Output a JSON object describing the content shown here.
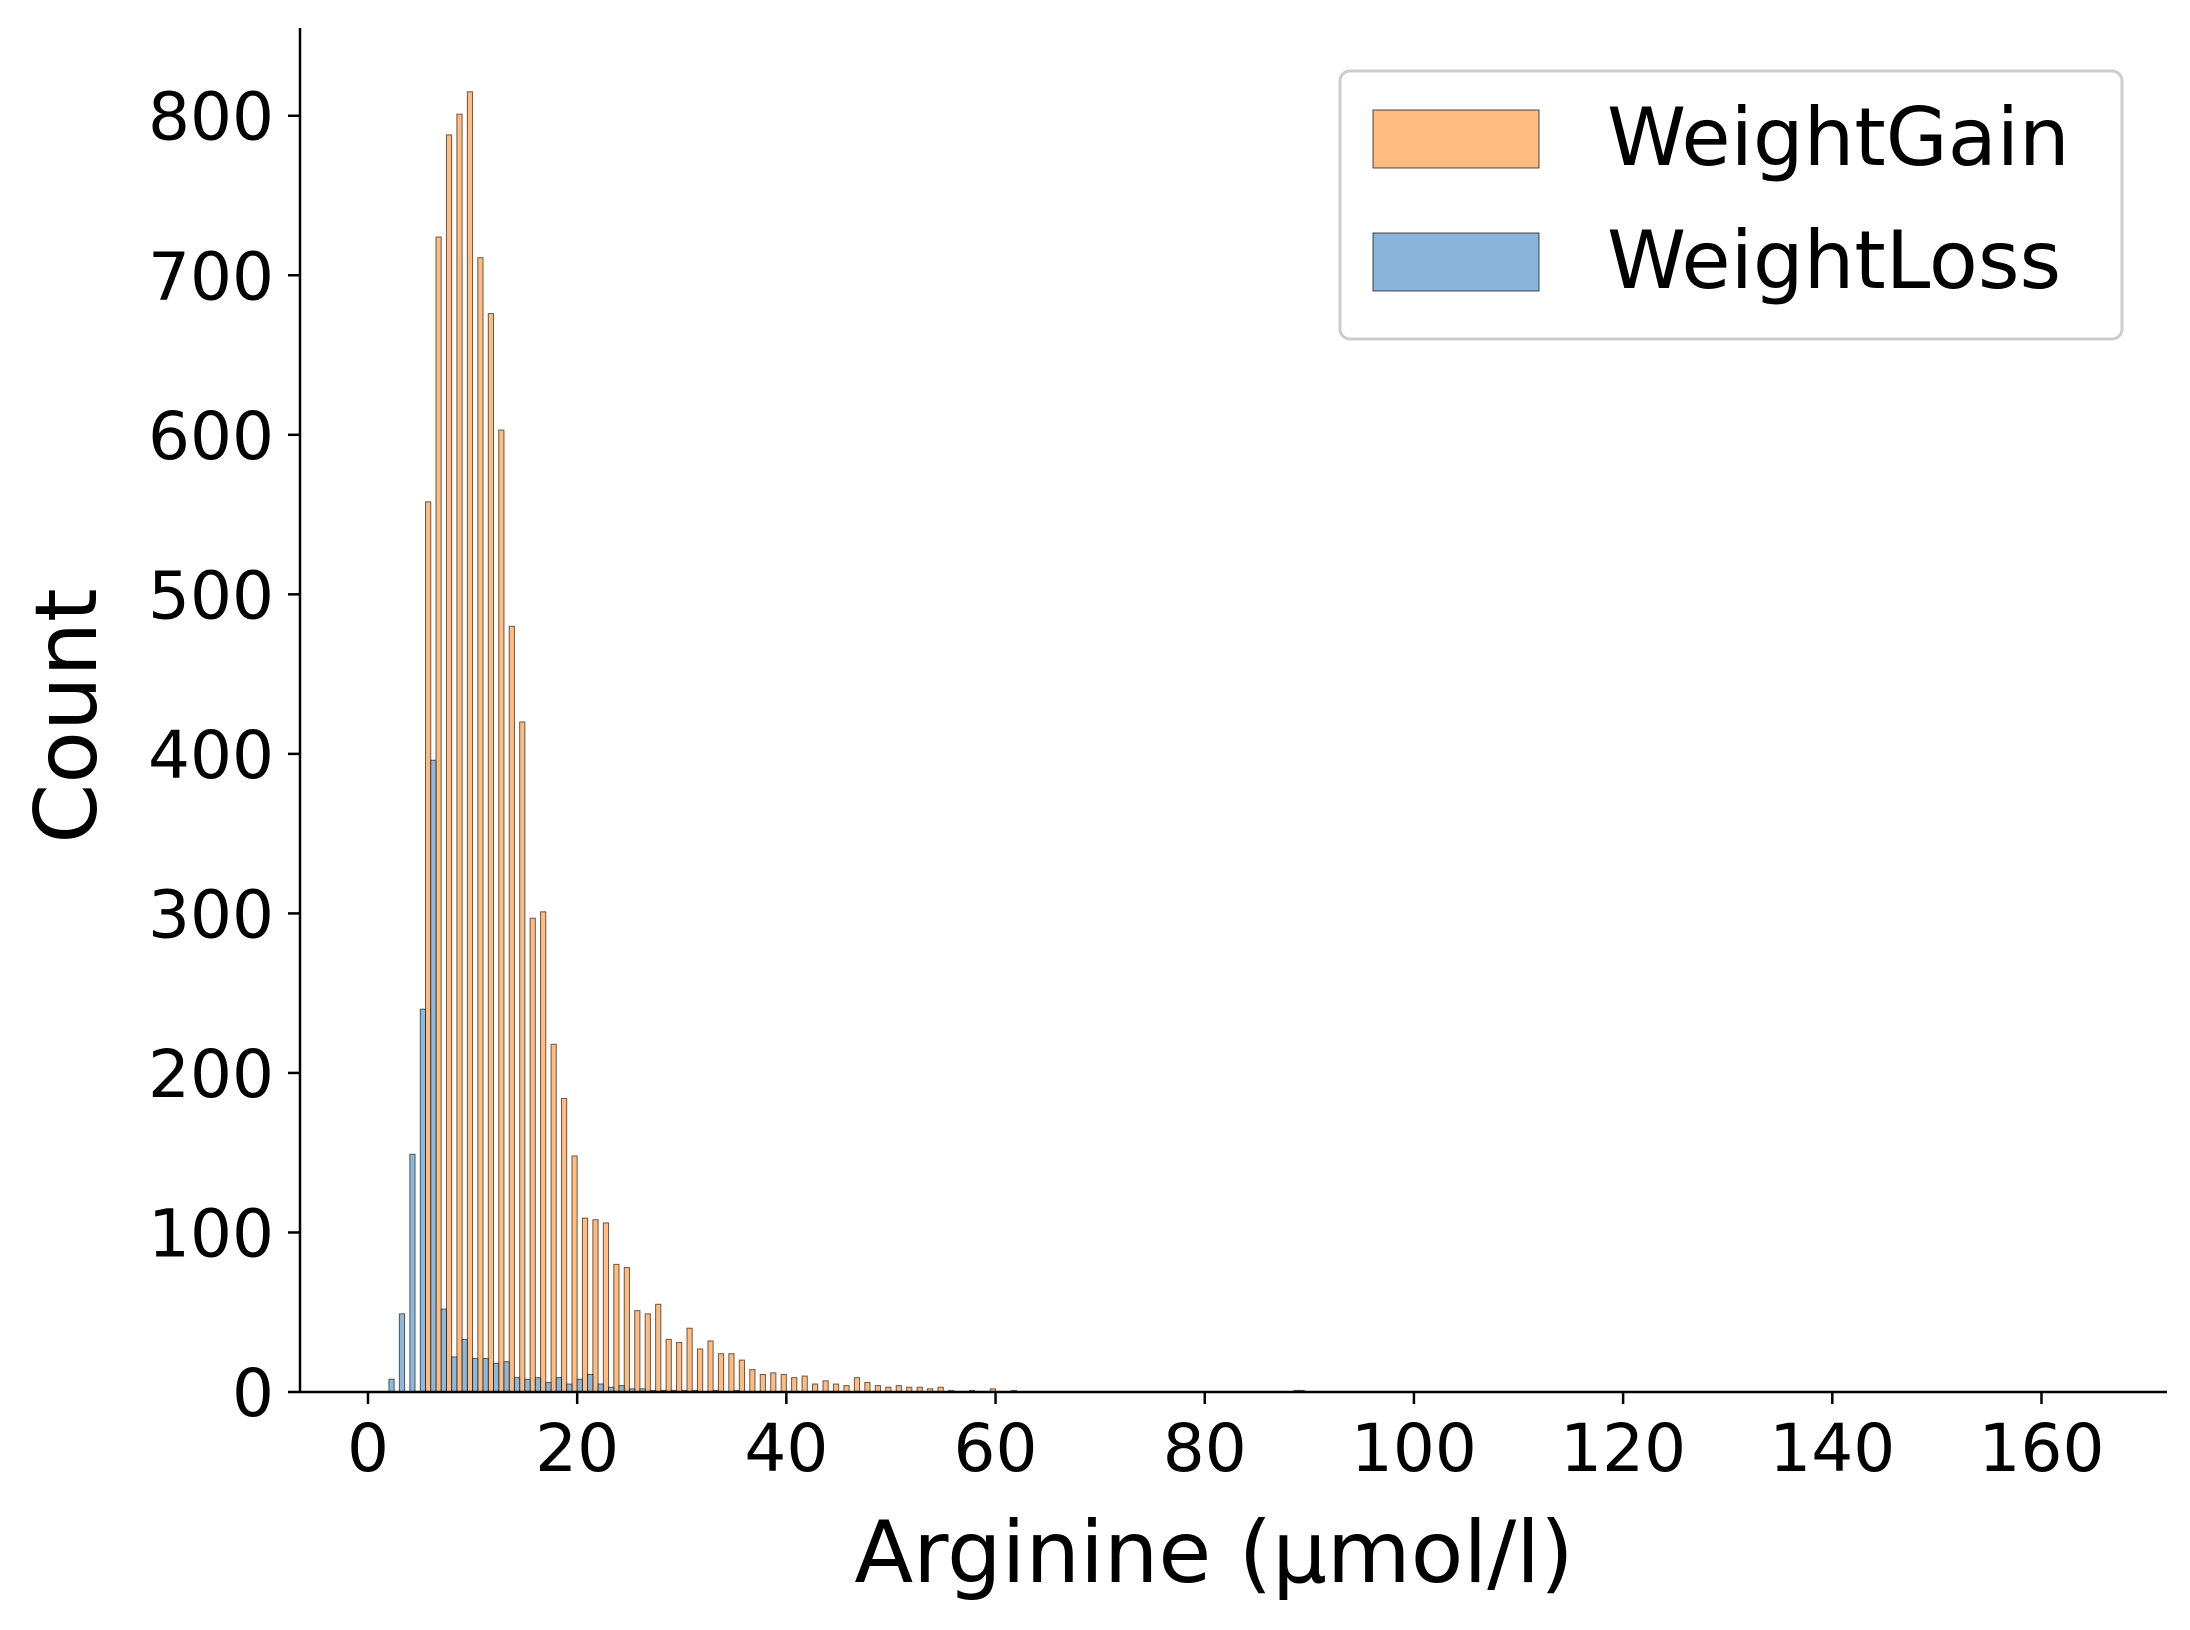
{
  "chart_data": {
    "type": "bar",
    "subtype": "histogram",
    "title": "",
    "xlabel": "Arginine (µmol/l)",
    "ylabel": "Count",
    "xlim": [
      -6.5,
      172
    ],
    "ylim": [
      0,
      855
    ],
    "xticks": [
      0,
      20,
      40,
      60,
      80,
      100,
      120,
      140,
      160
    ],
    "yticks": [
      0,
      100,
      200,
      300,
      400,
      500,
      600,
      700,
      800
    ],
    "grid": false,
    "legend_position": "top-right",
    "bin_width": 1.0,
    "series": [
      {
        "name": "WeightGain",
        "color": "#ffbb80",
        "bins": [
          [
            2,
            0
          ],
          [
            3,
            0
          ],
          [
            4,
            0
          ],
          [
            5,
            0
          ],
          [
            6,
            558
          ],
          [
            7,
            724
          ],
          [
            8,
            788
          ],
          [
            9,
            801
          ],
          [
            10,
            815
          ],
          [
            11,
            711
          ],
          [
            12,
            676
          ],
          [
            13,
            603
          ],
          [
            14,
            480
          ],
          [
            15,
            420
          ],
          [
            16,
            297
          ],
          [
            17,
            301
          ],
          [
            18,
            218
          ],
          [
            19,
            184
          ],
          [
            20,
            148
          ],
          [
            21,
            109
          ],
          [
            22,
            108
          ],
          [
            23,
            106
          ],
          [
            24,
            80
          ],
          [
            25,
            78
          ],
          [
            26,
            51
          ],
          [
            27,
            49
          ],
          [
            28,
            55
          ],
          [
            29,
            33
          ],
          [
            30,
            31
          ],
          [
            31,
            40
          ],
          [
            32,
            27
          ],
          [
            33,
            32
          ],
          [
            34,
            24
          ],
          [
            35,
            24
          ],
          [
            36,
            20
          ],
          [
            37,
            14
          ],
          [
            38,
            11
          ],
          [
            39,
            12
          ],
          [
            40,
            11
          ],
          [
            41,
            9
          ],
          [
            42,
            10
          ],
          [
            43,
            5
          ],
          [
            44,
            7
          ],
          [
            45,
            5
          ],
          [
            46,
            4
          ],
          [
            47,
            9
          ],
          [
            48,
            6
          ],
          [
            49,
            4
          ],
          [
            50,
            3
          ],
          [
            51,
            4
          ],
          [
            52,
            3
          ],
          [
            53,
            3
          ],
          [
            54,
            2
          ],
          [
            55,
            3
          ],
          [
            56,
            1
          ],
          [
            58,
            1
          ],
          [
            60,
            2
          ],
          [
            62,
            1
          ],
          [
            89,
            1
          ]
        ]
      },
      {
        "name": "WeightLoss",
        "color": "#88b5d9",
        "bins": [
          [
            2,
            8
          ],
          [
            3,
            49
          ],
          [
            4,
            149
          ],
          [
            5,
            240
          ],
          [
            6,
            396
          ],
          [
            7,
            52
          ],
          [
            8,
            22
          ],
          [
            9,
            33
          ],
          [
            10,
            21
          ],
          [
            11,
            21
          ],
          [
            12,
            18
          ],
          [
            13,
            19
          ],
          [
            14,
            9
          ],
          [
            15,
            8
          ],
          [
            16,
            9
          ],
          [
            17,
            6
          ],
          [
            18,
            9
          ],
          [
            19,
            5
          ],
          [
            20,
            8
          ],
          [
            21,
            11
          ],
          [
            22,
            5
          ],
          [
            23,
            3
          ],
          [
            24,
            4
          ],
          [
            25,
            2
          ],
          [
            26,
            2
          ],
          [
            27,
            1
          ],
          [
            28,
            1
          ],
          [
            29,
            1
          ],
          [
            30,
            1
          ],
          [
            31,
            1
          ],
          [
            33,
            1
          ],
          [
            35,
            1
          ],
          [
            89,
            1
          ]
        ]
      }
    ]
  }
}
